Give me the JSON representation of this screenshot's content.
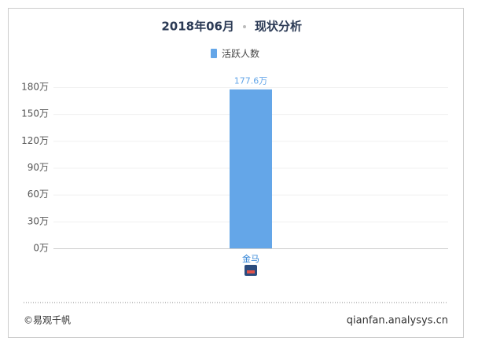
{
  "chart_data": {
    "type": "bar",
    "title": "2018年06月",
    "subtitle": "现状分析",
    "categories": [
      "金马"
    ],
    "series": [
      {
        "name": "活跃人数",
        "color": "#64a6e8",
        "values": [
          177.6
        ],
        "value_labels": [
          "177.6万"
        ]
      }
    ],
    "ylim": [
      0,
      180
    ],
    "yticks": [
      {
        "value": 0,
        "label": "0万"
      },
      {
        "value": 30,
        "label": "30万"
      },
      {
        "value": 60,
        "label": "60万"
      },
      {
        "value": 90,
        "label": "90万"
      },
      {
        "value": 120,
        "label": "120万"
      },
      {
        "value": 150,
        "label": "150万"
      },
      {
        "value": 180,
        "label": "180万"
      }
    ],
    "grid": true,
    "legend": "top"
  },
  "footer": {
    "left": "©易观千帆",
    "right": "qianfan.analysys.cn"
  }
}
